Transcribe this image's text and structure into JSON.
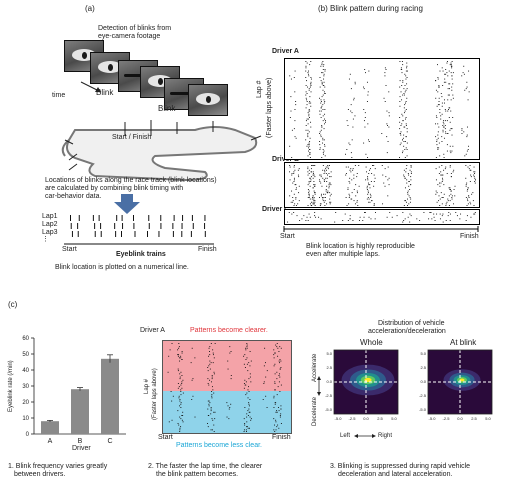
{
  "panel_a": {
    "label": "(a)",
    "detection_text": [
      "Detection of blinks from",
      "eye-camera footage"
    ],
    "time_label": "time",
    "blink_label_1": "Blink",
    "blink_label_2": "Blink",
    "start_finish_label": "Start / Finish",
    "locations_text": [
      "Locations of blinks along the race track (blink locations)",
      "are calculated by combining blink timing with",
      "car-behavior data."
    ],
    "lap_labels": [
      "Lap1",
      "Lap2",
      "Lap3",
      "⋮"
    ],
    "start_label": "Start",
    "finish_label": "Finish",
    "trains_label": "Eyeblink trains",
    "plotted_text": "Blink location is plotted on a numerical line."
  },
  "panel_b": {
    "title": "(b) Blink pattern during racing",
    "driver_a": "Driver  A",
    "driver_b": "Driver  B",
    "driver_c": "Driver  C",
    "ylabel": "Lap #",
    "ylabel2": "(Faster laps above)",
    "start_label": "Start",
    "finish_label": "Finish",
    "caption": [
      "Blink location is highly reproducible",
      "even after multiple laps."
    ]
  },
  "panel_c": {
    "label": "(c)",
    "bar_chart": {
      "ylabel": "Eyeblink rate (/min)",
      "xlabel": "Driver",
      "caption": [
        "1. Blink frequency varies greatly",
        "between drivers."
      ]
    },
    "middle": {
      "driver_label": "Driver A",
      "top_note": "Patterns become clearer.",
      "bottom_note": "Patterns become less clear.",
      "ylabel": "Lap #",
      "ylabel2": "(Faster laps above)",
      "start_label": "Start",
      "finish_label": "Finish",
      "caption": [
        "2. The faster the lap time, the clearer",
        "the blink pattern becomes."
      ]
    },
    "right": {
      "title": [
        "Distribution of vehicle",
        "acceleration/deceleration"
      ],
      "whole_label": "Whole",
      "blink_label": "At blink",
      "accelerate_label": "Accelerate",
      "decelerate_label": "Decelerate",
      "left_label": "Left",
      "right_label": "Right",
      "ticks": [
        "-5.0",
        "-2.5",
        "0.0",
        "2.5",
        "5.0"
      ],
      "caption": [
        "3. Blinking is suppressed during rapid vehicle",
        "deceleration and lateral acceleration."
      ]
    },
    "colors": {
      "red_band": "#f4a3a8",
      "blue_band": "#8fd3ea",
      "bar": "#8a8a8a"
    }
  },
  "chart_data": {
    "type": "bar",
    "categories": [
      "A",
      "B",
      "C"
    ],
    "values": [
      8,
      28,
      47
    ],
    "errors": [
      0.5,
      1,
      2.5
    ],
    "xlabel": "Driver",
    "ylabel": "Eyeblink rate (/min)",
    "ylim": [
      0,
      60
    ],
    "yticks": [
      0,
      10,
      20,
      30,
      40,
      50,
      60
    ]
  }
}
